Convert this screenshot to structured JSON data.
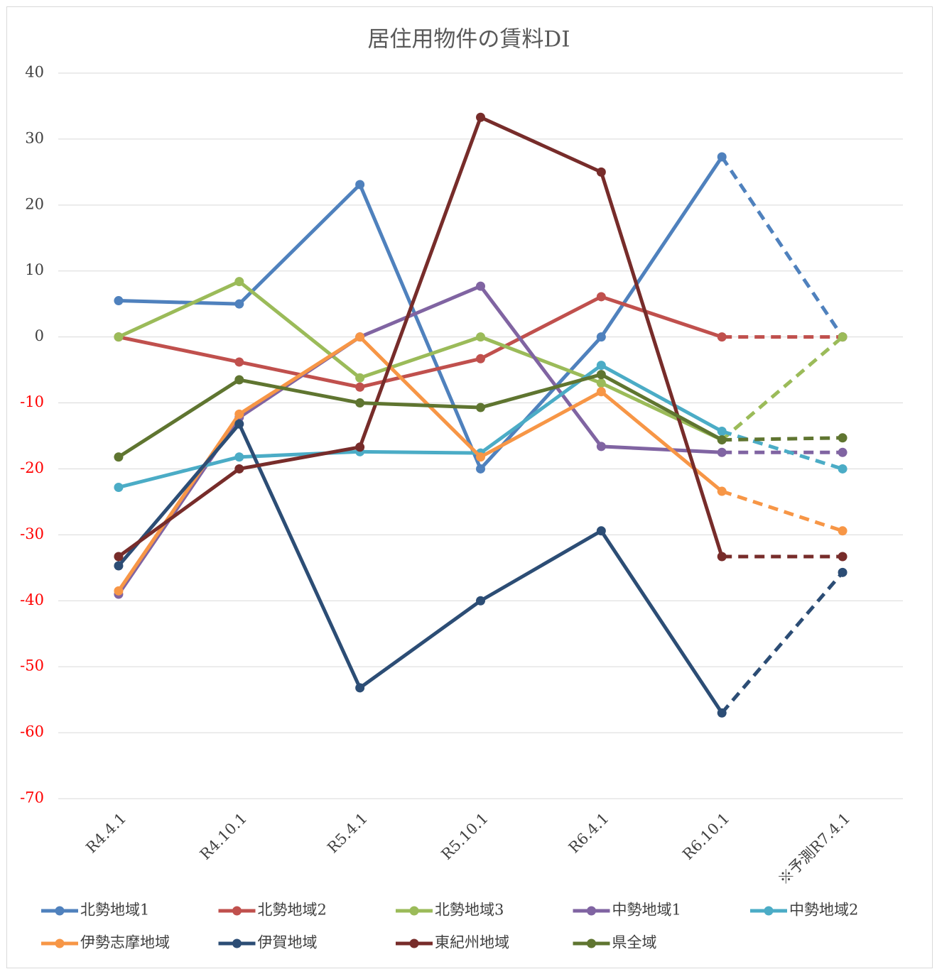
{
  "chart_data": {
    "type": "line",
    "title": "居住用物件の賃料DI",
    "categories": [
      "R4.4.1",
      "R4.10.1",
      "R5.4.1",
      "R5.10.1",
      "R6.4.1",
      "R6.10.1",
      "※予測R7.4.1"
    ],
    "ylim": [
      -70,
      40
    ],
    "yticks": [
      -70,
      -60,
      -50,
      -40,
      -30,
      -20,
      -10,
      0,
      10,
      20,
      30,
      40
    ],
    "grid": true,
    "negative_tick_color": "#ff0000",
    "legend": "bottom",
    "dashed_last_segment": true,
    "series": [
      {
        "name": "北勢地域1",
        "color": "#4f81bd",
        "values": [
          5.5,
          5.0,
          23.1,
          -20,
          0,
          27.3,
          0
        ]
      },
      {
        "name": "北勢地域2",
        "color": "#c0504d",
        "values": [
          0,
          -3.8,
          -7.6,
          -3.3,
          6.1,
          0,
          0
        ]
      },
      {
        "name": "北勢地域3",
        "color": "#9bbb59",
        "values": [
          0,
          8.4,
          -6.2,
          0,
          -7.0,
          -15.6,
          0
        ]
      },
      {
        "name": "中勢地域1",
        "color": "#8064a2",
        "values": [
          -39,
          -12.2,
          0,
          7.7,
          -16.6,
          -17.5,
          -17.5
        ]
      },
      {
        "name": "中勢地域2",
        "color": "#4bacc6",
        "values": [
          -22.8,
          -18.2,
          -17.4,
          -17.6,
          -4.3,
          -14.3,
          -20
        ]
      },
      {
        "name": "伊勢志摩地域",
        "color": "#f79646",
        "values": [
          -38.5,
          -11.7,
          0,
          -18.2,
          -8.3,
          -23.4,
          -29.4
        ]
      },
      {
        "name": "伊賀地域",
        "color": "#2c4d75",
        "values": [
          -34.7,
          -13.2,
          -53.2,
          -40,
          -29.4,
          -57,
          -35.7
        ]
      },
      {
        "name": "東紀州地域",
        "color": "#772c2a",
        "values": [
          -33.3,
          -20,
          -16.7,
          33.3,
          25,
          -33.3,
          -33.3
        ]
      },
      {
        "name": "県全域",
        "color": "#5f7530",
        "values": [
          -18.2,
          -6.5,
          -10,
          -10.7,
          -5.7,
          -15.6,
          -15.3
        ]
      }
    ]
  }
}
